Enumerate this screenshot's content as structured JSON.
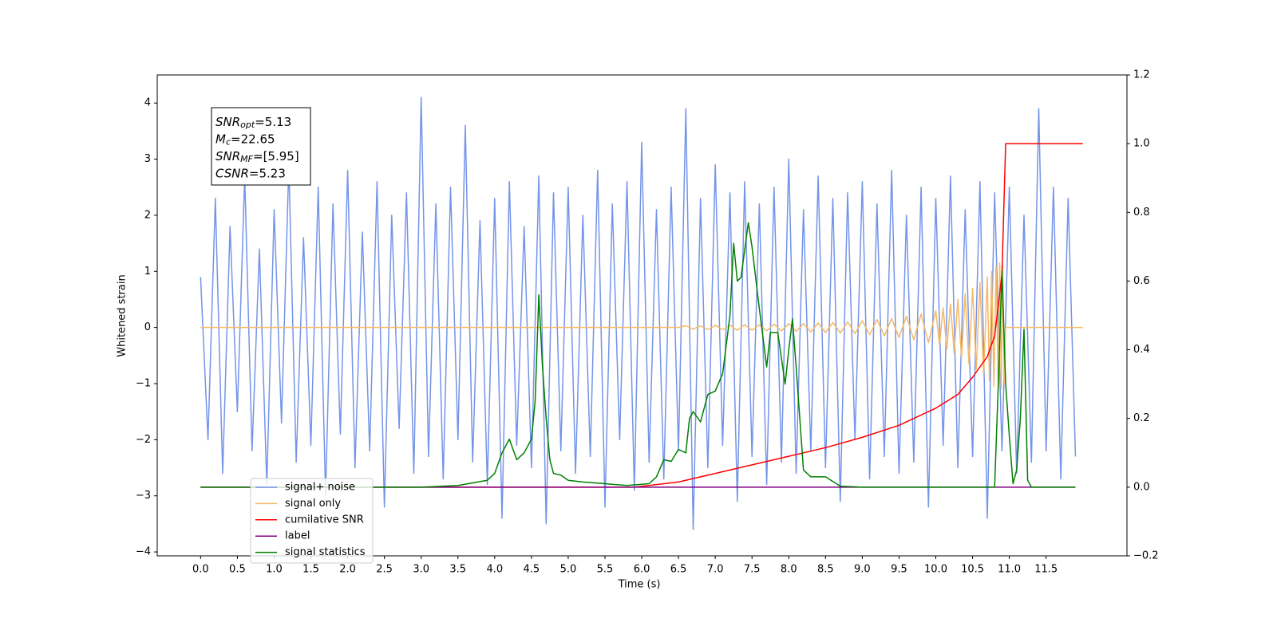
{
  "chart_data": {
    "type": "line",
    "xlabel": "Time (s)",
    "ylabel": "Whitened strain",
    "xlim": [
      -0.59,
      12.6
    ],
    "ylim": [
      -4.07,
      4.5
    ],
    "y2lim": [
      -0.2,
      1.2
    ],
    "xticks": [
      {
        "value": 0,
        "label": "0.0"
      },
      0.5,
      {
        "value": 1,
        "label": "1.0"
      },
      1.5,
      {
        "value": 2,
        "label": "2.0"
      },
      2.5,
      {
        "value": 3,
        "label": "3.0"
      },
      3.5,
      {
        "value": 4,
        "label": "4.0"
      },
      4.5,
      {
        "value": 5,
        "label": "5.0"
      },
      5.5,
      {
        "value": 6,
        "label": "6.0"
      },
      6.5,
      {
        "value": 7,
        "label": "7.0"
      },
      7.5,
      {
        "value": 8,
        "label": "8.0"
      },
      8.5,
      {
        "value": 9,
        "label": "9.0"
      },
      9.5,
      {
        "value": 10,
        "label": "10.0"
      },
      10.5,
      {
        "value": 11,
        "label": "11.0"
      },
      11.5
    ],
    "yticks": [
      {
        "value": -4,
        "label": "−4"
      },
      {
        "value": -3,
        "label": "−3"
      },
      {
        "value": -2,
        "label": "−2"
      },
      {
        "value": -1,
        "label": "−1"
      },
      0,
      1,
      2,
      3,
      4
    ],
    "y2ticks": [
      {
        "value": -0.2,
        "label": "−0.2"
      },
      {
        "value": 0,
        "label": "0.0"
      },
      0.2,
      0.4,
      0.6,
      0.8,
      {
        "value": 1,
        "label": "1.0"
      },
      1.2
    ],
    "legend": "lower left",
    "annotation": [
      {
        "symbol": "SNR",
        "subscript": "opt",
        "text": "=5.13"
      },
      {
        "symbol": "M",
        "subscript": "c",
        "text": "=22.65"
      },
      {
        "symbol": "SNR",
        "subscript": "MF",
        "text": "=[5.95]"
      },
      {
        "symbol": "CSNR",
        "text": "=5.23"
      }
    ],
    "series": [
      {
        "name": "signal+ noise",
        "color": "#7494e8",
        "axis": "y",
        "x": [
          0,
          0.1,
          0.2,
          0.3,
          0.4,
          0.5,
          0.6,
          0.7,
          0.8,
          0.9,
          1,
          1.1,
          1.2,
          1.3,
          1.4,
          1.5,
          1.6,
          1.7,
          1.8,
          1.9,
          2,
          2.1,
          2.2,
          2.3,
          2.4,
          2.5,
          2.6,
          2.7,
          2.8,
          2.9,
          3,
          3.1,
          3.2,
          3.3,
          3.4,
          3.5,
          3.6,
          3.7,
          3.8,
          3.9,
          4,
          4.1,
          4.2,
          4.3,
          4.4,
          4.5,
          4.6,
          4.7,
          4.8,
          4.9,
          5,
          5.1,
          5.2,
          5.3,
          5.4,
          5.5,
          5.6,
          5.7,
          5.8,
          5.9,
          6,
          6.1,
          6.2,
          6.3,
          6.4,
          6.5,
          6.6,
          6.7,
          6.8,
          6.9,
          7,
          7.1,
          7.2,
          7.3,
          7.4,
          7.5,
          7.6,
          7.7,
          7.8,
          7.9,
          8,
          8.1,
          8.2,
          8.3,
          8.4,
          8.5,
          8.6,
          8.7,
          8.8,
          8.9,
          9,
          9.1,
          9.2,
          9.3,
          9.4,
          9.5,
          9.6,
          9.7,
          9.8,
          9.9,
          10,
          10.1,
          10.2,
          10.3,
          10.4,
          10.5,
          10.6,
          10.7,
          10.8,
          10.9,
          11,
          11.1,
          11.2,
          11.3,
          11.4,
          11.5,
          11.6,
          11.7,
          11.8,
          11.9
        ],
        "values": [
          0.9,
          -2.0,
          2.3,
          -2.6,
          1.8,
          -1.5,
          2.7,
          -2.2,
          1.4,
          -2.8,
          2.1,
          -1.7,
          2.9,
          -2.4,
          1.6,
          -2.1,
          2.5,
          -3.0,
          2.2,
          -1.9,
          2.8,
          -2.5,
          1.7,
          -2.2,
          2.6,
          -3.2,
          2.0,
          -1.8,
          2.4,
          -2.6,
          4.1,
          -2.3,
          2.2,
          -2.7,
          2.5,
          -2.0,
          3.6,
          -2.4,
          1.9,
          -2.8,
          2.3,
          -3.4,
          2.6,
          -2.1,
          1.8,
          -2.5,
          2.7,
          -3.5,
          2.4,
          -2.2,
          2.5,
          -2.6,
          2.0,
          -2.3,
          2.8,
          -3.2,
          2.2,
          -2.0,
          2.6,
          -2.9,
          3.3,
          -2.4,
          2.1,
          -2.7,
          2.5,
          -2.2,
          3.9,
          -3.6,
          2.3,
          -2.5,
          2.9,
          -2.1,
          2.4,
          -3.1,
          2.6,
          -2.3,
          2.2,
          -2.8,
          2.5,
          -2.4,
          3.0,
          -2.6,
          2.1,
          -2.2,
          2.7,
          -2.5,
          2.3,
          -3.1,
          2.4,
          -2.0,
          2.6,
          -2.7,
          2.2,
          -2.3,
          2.8,
          -2.6,
          2.0,
          -2.4,
          2.5,
          -3.2,
          2.3,
          -2.1,
          2.7,
          -2.5,
          2.1,
          -2.3,
          2.6,
          -3.4,
          2.4,
          -2.2,
          2.5,
          -2.6,
          2.0,
          -2.4,
          3.9,
          -2.2,
          2.5,
          -2.7,
          2.3,
          -2.3
        ]
      },
      {
        "name": "signal only",
        "color": "#f4b968",
        "axis": "y",
        "x": [
          0,
          6.5,
          6.6,
          6.7,
          6.8,
          6.9,
          7.0,
          7.1,
          7.2,
          7.3,
          7.4,
          7.5,
          7.6,
          7.7,
          7.8,
          7.9,
          8.0,
          8.1,
          8.2,
          8.3,
          8.4,
          8.5,
          8.6,
          8.7,
          8.8,
          8.9,
          9.0,
          9.1,
          9.2,
          9.3,
          9.4,
          9.5,
          9.6,
          9.7,
          9.8,
          9.9,
          10.0,
          10.05,
          10.1,
          10.15,
          10.2,
          10.25,
          10.3,
          10.35,
          10.4,
          10.45,
          10.5,
          10.55,
          10.6,
          10.65,
          10.7,
          10.73,
          10.76,
          10.79,
          10.82,
          10.85,
          10.87,
          10.89,
          10.91,
          10.93,
          10.95,
          11.0,
          12.0
        ],
        "values": [
          0,
          0,
          0.03,
          -0.03,
          0.03,
          -0.04,
          0.04,
          -0.04,
          0.04,
          -0.05,
          0.05,
          -0.05,
          0.05,
          -0.06,
          0.06,
          -0.06,
          0.07,
          -0.07,
          0.07,
          -0.08,
          0.08,
          -0.09,
          0.09,
          -0.1,
          0.1,
          -0.11,
          0.12,
          -0.13,
          0.14,
          -0.15,
          0.16,
          -0.18,
          0.2,
          -0.22,
          0.24,
          -0.27,
          0.3,
          -0.32,
          0.35,
          -0.38,
          0.42,
          -0.46,
          0.5,
          -0.55,
          0.6,
          -0.65,
          0.7,
          -0.75,
          0.8,
          -0.85,
          0.9,
          -0.95,
          1.0,
          -1.05,
          1.1,
          -1.1,
          1.15,
          -1.1,
          1.1,
          -1.0,
          0,
          0,
          0
        ]
      },
      {
        "name": "cumilative SNR",
        "color": "#ff0000",
        "axis": "y2",
        "x": [
          0,
          5.9,
          6.5,
          7.0,
          7.5,
          8.0,
          8.5,
          9.0,
          9.5,
          10.0,
          10.3,
          10.5,
          10.7,
          10.8,
          10.9,
          10.95,
          11.0,
          12.0
        ],
        "values": [
          0,
          0,
          0.015,
          0.04,
          0.065,
          0.09,
          0.115,
          0.145,
          0.18,
          0.23,
          0.27,
          0.32,
          0.38,
          0.44,
          0.62,
          1.0,
          1.0,
          1.0
        ]
      },
      {
        "name": "label",
        "color": "#800080",
        "axis": "y2",
        "x": [
          0,
          11.9
        ],
        "values": [
          0,
          0
        ]
      },
      {
        "name": "signal statistics",
        "color": "#008000",
        "axis": "y2",
        "x": [
          0,
          3.0,
          3.5,
          3.9,
          4.0,
          4.1,
          4.2,
          4.3,
          4.4,
          4.5,
          4.55,
          4.6,
          4.65,
          4.7,
          4.75,
          4.8,
          4.9,
          5.0,
          5.2,
          5.5,
          5.8,
          6.1,
          6.2,
          6.3,
          6.4,
          6.5,
          6.6,
          6.65,
          6.7,
          6.8,
          6.9,
          7.0,
          7.1,
          7.2,
          7.25,
          7.3,
          7.35,
          7.45,
          7.5,
          7.6,
          7.7,
          7.75,
          7.85,
          7.95,
          8.0,
          8.05,
          8.1,
          8.2,
          8.3,
          8.5,
          8.7,
          9.0,
          10.8,
          10.85,
          10.9,
          10.95,
          11.0,
          11.05,
          11.1,
          11.15,
          11.2,
          11.25,
          11.3,
          11.9
        ],
        "values": [
          0,
          0,
          0.005,
          0.02,
          0.04,
          0.1,
          0.14,
          0.08,
          0.1,
          0.14,
          0.25,
          0.56,
          0.35,
          0.2,
          0.08,
          0.04,
          0.035,
          0.02,
          0.015,
          0.01,
          0.005,
          0.01,
          0.03,
          0.08,
          0.075,
          0.11,
          0.1,
          0.2,
          0.22,
          0.19,
          0.27,
          0.28,
          0.33,
          0.5,
          0.71,
          0.6,
          0.61,
          0.77,
          0.7,
          0.52,
          0.35,
          0.45,
          0.45,
          0.3,
          0.4,
          0.49,
          0.35,
          0.05,
          0.03,
          0.03,
          0.003,
          0,
          0,
          0.3,
          0.63,
          0.3,
          0.15,
          0.01,
          0.05,
          0.2,
          0.46,
          0.02,
          0,
          0
        ]
      }
    ]
  }
}
